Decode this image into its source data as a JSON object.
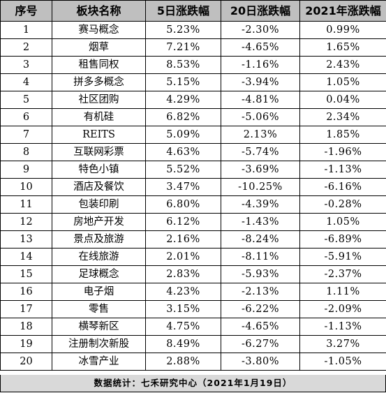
{
  "table": {
    "headers": [
      "序号",
      "板块名称",
      "5日涨跌幅",
      "20日涨跌幅",
      "2021年涨跌幅"
    ],
    "rows": [
      [
        "1",
        "赛马概念",
        "5.23%",
        "-2.30%",
        "0.99%"
      ],
      [
        "2",
        "烟草",
        "7.21%",
        "-4.65%",
        "1.65%"
      ],
      [
        "3",
        "租售同权",
        "8.53%",
        "-1.16%",
        "2.43%"
      ],
      [
        "4",
        "拼多多概念",
        "5.15%",
        "-3.94%",
        "1.05%"
      ],
      [
        "5",
        "社区团购",
        "4.29%",
        "-4.81%",
        "0.04%"
      ],
      [
        "6",
        "有机硅",
        "6.82%",
        "-5.06%",
        "2.34%"
      ],
      [
        "7",
        "REITS",
        "5.09%",
        "2.13%",
        "1.85%"
      ],
      [
        "8",
        "互联网彩票",
        "4.63%",
        "-5.74%",
        "-1.96%"
      ],
      [
        "9",
        "特色小镇",
        "5.52%",
        "-3.69%",
        "-1.13%"
      ],
      [
        "10",
        "酒店及餐饮",
        "3.47%",
        "-10.25%",
        "-6.16%"
      ],
      [
        "11",
        "包装印刷",
        "6.80%",
        "-4.39%",
        "-0.28%"
      ],
      [
        "12",
        "房地产开发",
        "6.12%",
        "-1.43%",
        "1.05%"
      ],
      [
        "13",
        "景点及旅游",
        "2.16%",
        "-8.24%",
        "-6.89%"
      ],
      [
        "14",
        "在线旅游",
        "2.01%",
        "-8.11%",
        "-5.91%"
      ],
      [
        "15",
        "足球概念",
        "2.83%",
        "-5.93%",
        "-2.37%"
      ],
      [
        "16",
        "电子烟",
        "4.23%",
        "-2.13%",
        "1.11%"
      ],
      [
        "17",
        "零售",
        "3.15%",
        "-6.22%",
        "-2.09%"
      ],
      [
        "18",
        "横琴新区",
        "4.75%",
        "-4.65%",
        "-1.13%"
      ],
      [
        "19",
        "注册制次新股",
        "8.49%",
        "-6.27%",
        "3.27%"
      ],
      [
        "20",
        "冰雪产业",
        "2.88%",
        "-3.80%",
        "-1.05%"
      ]
    ]
  },
  "footer": {
    "text": "数据统计：七禾研究中心（2021年1月19日）"
  },
  "colors": {
    "header_bg": "#bfbfbf",
    "footer_bg": "#d9d9d9",
    "border": "#000000"
  }
}
